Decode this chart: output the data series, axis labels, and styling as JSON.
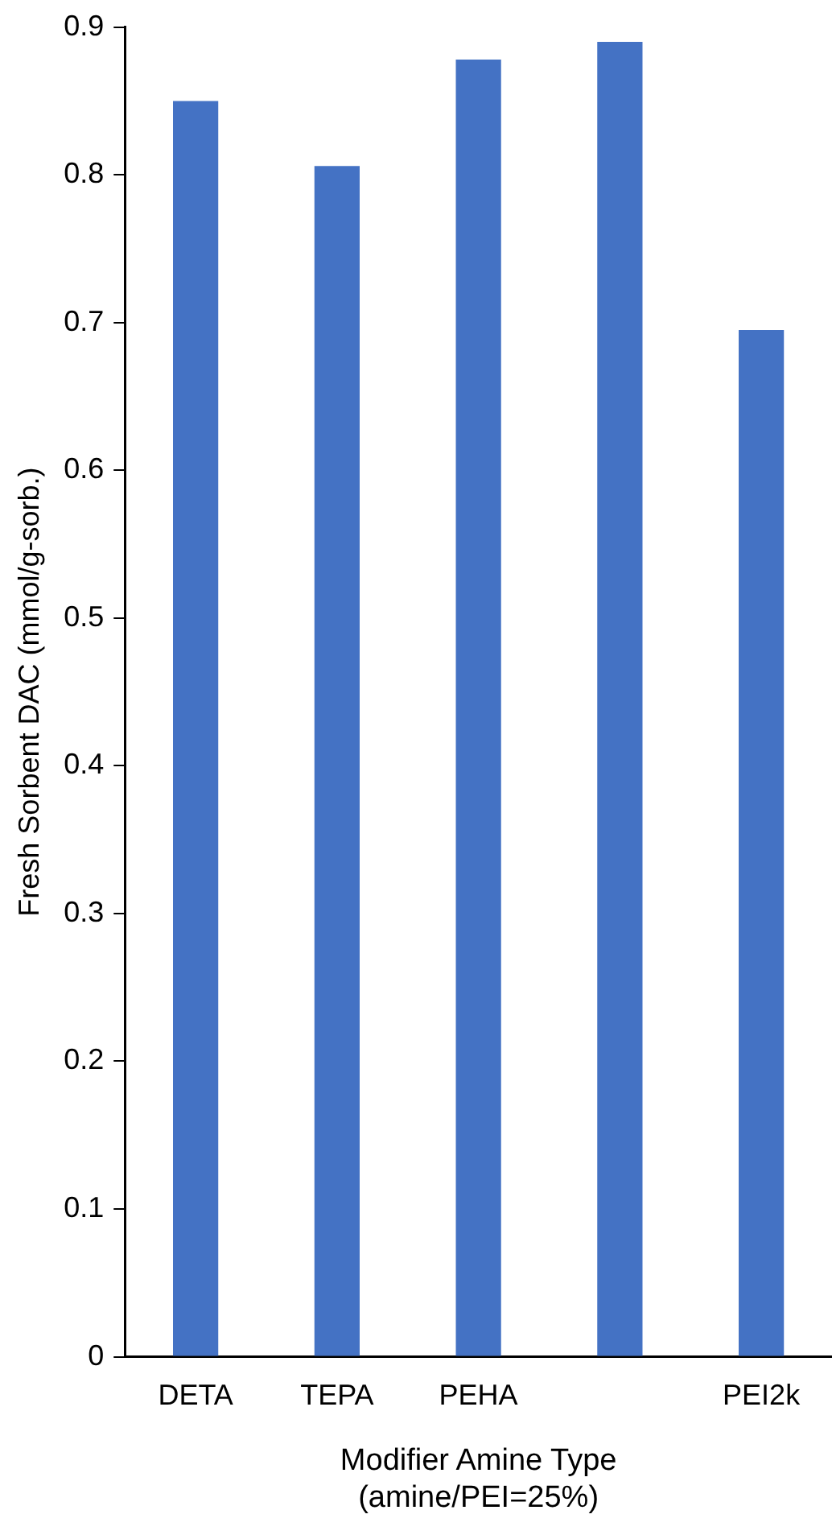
{
  "chart_data": {
    "type": "bar",
    "categories": [
      "DETA",
      "TEPA",
      "PEHA",
      null,
      "PEI2k"
    ],
    "values": [
      0.85,
      0.806,
      0.878,
      0.89,
      0.695
    ],
    "color": "#4472c4",
    "xlabel": "Modifier Amine Type\n(amine/PEI=25%)",
    "ylabel": "Fresh Sorbent DAC (mmol/g-sorb.)",
    "ylim": [
      0,
      0.9
    ],
    "yticks": [
      0,
      0.1,
      0.2,
      0.3,
      0.4,
      0.5,
      0.6,
      0.7,
      0.8,
      0.9
    ],
    "grid": false,
    "legend": false
  }
}
